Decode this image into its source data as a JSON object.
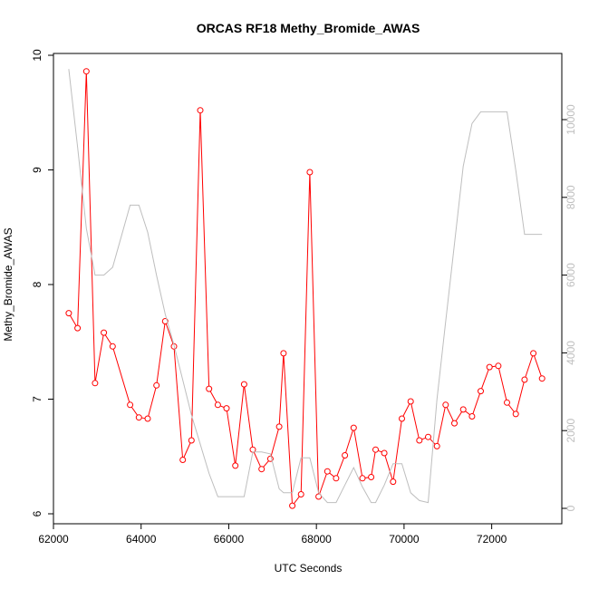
{
  "chart_data": {
    "type": "line",
    "title": "ORCAS RF18 Methy_Bromide_AWAS",
    "xlabel": "UTC Seconds",
    "ylabel": "Methy_Bromide_AWAS",
    "xlim": [
      62000,
      73600
    ],
    "ylim": [
      6.0,
      10.0
    ],
    "y2lim": [
      0,
      11500
    ],
    "x_ticks": [
      62000,
      64000,
      66000,
      68000,
      70000,
      72000
    ],
    "x_tick_labels": [
      "62000",
      "64000",
      "66000",
      "68000",
      "70000",
      "72000"
    ],
    "y_ticks": [
      6,
      7,
      8,
      9,
      10
    ],
    "y_tick_labels": [
      "6",
      "7",
      "8",
      "9",
      "10"
    ],
    "y2_ticks": [
      0,
      2000,
      4000,
      6000,
      8000,
      10000
    ],
    "y2_tick_labels": [
      "0",
      "2000",
      "4000",
      "6000",
      "8000",
      "10000"
    ],
    "colors": {
      "series": "#ff0000",
      "altitude": "#bebebe"
    },
    "series": [
      {
        "axis": "left",
        "color": "#ff0000",
        "marker": "open-circle",
        "x": [
          62350,
          62550,
          62750,
          62950,
          63150,
          63350,
          63750,
          63950,
          64150,
          64350,
          64550,
          64750,
          64950,
          65150,
          65350,
          65550,
          65750,
          65950,
          66150,
          66350,
          66550,
          66750,
          66950,
          67150,
          67250,
          67450,
          67650,
          67850,
          68050,
          68250,
          68450,
          68650,
          68850,
          69050,
          69250,
          69350,
          69550,
          69750,
          69950,
          70150,
          70350,
          70550,
          70750,
          70950,
          71150,
          71350,
          71550,
          71750,
          71950,
          72150,
          72350,
          72550,
          72750,
          72950,
          73150
        ],
        "values": [
          7.75,
          7.62,
          9.86,
          7.14,
          7.58,
          7.46,
          6.95,
          6.84,
          6.83,
          7.12,
          7.68,
          7.46,
          6.47,
          6.64,
          9.52,
          7.09,
          6.95,
          6.92,
          6.42,
          7.13,
          6.56,
          6.39,
          6.48,
          6.76,
          7.4,
          6.07,
          6.17,
          8.98,
          6.15,
          6.37,
          6.31,
          6.51,
          6.75,
          6.31,
          6.32,
          6.56,
          6.53,
          6.28,
          6.83,
          6.98,
          6.64,
          6.67,
          6.59,
          6.95,
          6.79,
          6.91,
          6.85,
          7.07,
          7.28,
          7.29,
          6.97,
          6.87,
          7.17,
          7.4,
          7.18
        ]
      },
      {
        "axis": "right",
        "color": "#bebebe",
        "marker": "none",
        "x": [
          62350,
          62550,
          62750,
          62950,
          63150,
          63350,
          63750,
          63950,
          64150,
          64350,
          64550,
          64750,
          64950,
          65150,
          65350,
          65550,
          65750,
          65950,
          66150,
          66350,
          66550,
          66750,
          66950,
          67150,
          67250,
          67450,
          67650,
          67850,
          68050,
          68250,
          68450,
          68650,
          68850,
          69050,
          69250,
          69350,
          69550,
          69750,
          69950,
          70150,
          70350,
          70550,
          70750,
          70950,
          71150,
          71350,
          71550,
          71750,
          71950,
          72150,
          72350,
          72550,
          72750,
          72950,
          73150
        ],
        "values": [
          11300,
          9300,
          7200,
          6000,
          6000,
          6200,
          7800,
          7800,
          7100,
          6000,
          5000,
          4200,
          3300,
          2400,
          1650,
          900,
          300,
          300,
          300,
          300,
          1450,
          1450,
          1400,
          500,
          400,
          400,
          1300,
          1300,
          400,
          150,
          150,
          600,
          1050,
          550,
          150,
          150,
          600,
          1150,
          1150,
          400,
          200,
          150,
          2800,
          4800,
          6800,
          8800,
          9900,
          10200,
          10200,
          10200,
          10200,
          8700,
          7050,
          7050,
          7050
        ]
      }
    ]
  }
}
